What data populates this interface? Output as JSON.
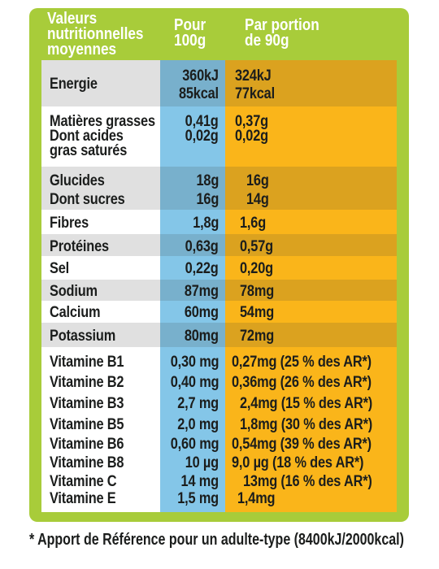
{
  "header": {
    "col1": [
      "Valeurs",
      "nutritionnelles",
      "moyennes"
    ],
    "col2": [
      "Pour",
      "100g"
    ],
    "col3": [
      "Par portion",
      "de 90g"
    ]
  },
  "rows": [
    {
      "label": [
        "Energie"
      ],
      "per100": [
        "360kJ",
        "85kcal"
      ],
      "portion": [
        "324kJ",
        "77kcal"
      ]
    },
    {
      "label": [
        "Matières grasses",
        "Dont acides",
        "gras saturés"
      ],
      "per100": [
        "0,41g",
        "0,02g"
      ],
      "portion": [
        "0,37g",
        "0,02g"
      ]
    },
    {
      "label": [
        "Glucides",
        "Dont sucres"
      ],
      "per100": [
        "18g",
        "16g"
      ],
      "portion": [
        "16g",
        "14g"
      ]
    },
    {
      "label": [
        "Fibres"
      ],
      "per100": [
        "1,8g"
      ],
      "portion": [
        "1,6g"
      ]
    },
    {
      "label": [
        "Protéines"
      ],
      "per100": [
        "0,63g"
      ],
      "portion": [
        "0,57g"
      ]
    },
    {
      "label": [
        "Sel"
      ],
      "per100": [
        "0,22g"
      ],
      "portion": [
        "0,20g"
      ]
    },
    {
      "label": [
        "Sodium"
      ],
      "per100": [
        "87mg"
      ],
      "portion": [
        "78mg"
      ]
    },
    {
      "label": [
        "Calcium"
      ],
      "per100": [
        "60mg"
      ],
      "portion": [
        "54mg"
      ]
    },
    {
      "label": [
        "Potassium"
      ],
      "per100": [
        "80mg"
      ],
      "portion": [
        "72mg"
      ]
    },
    {
      "label": [
        "Vitamine B1",
        "Vitamine B2",
        "Vitamine B3",
        "Vitamine B5",
        "Vitamine B6",
        "Vitamine B8",
        "Vitamine C",
        "Vitamine E"
      ],
      "per100": [
        "0,30 mg",
        "0,40 mg",
        "2,7 mg",
        "2,0 mg",
        "0,60 mg",
        "10 µg",
        "14 mg",
        "1,5 mg"
      ],
      "portion": [
        "0,27mg (25 % des AR*)",
        "0,36mg (26 % des AR*)",
        "2,4mg (15 % des AR*)",
        "1,8mg (30 % des AR*)",
        "0,54mg (39 % des AR*)",
        "9,0 µg (18 % des AR*)",
        "13mg (16 % des AR*)",
        "1,4mg"
      ]
    }
  ],
  "footnote": "* Apport de Référence pour un adulte-type (8400kJ/2000kcal)",
  "colors": {
    "frame": "#a8cc3a",
    "per100_column": "#84c6e8",
    "portion_column": "#fab51a",
    "header_text": "#ffffff"
  }
}
